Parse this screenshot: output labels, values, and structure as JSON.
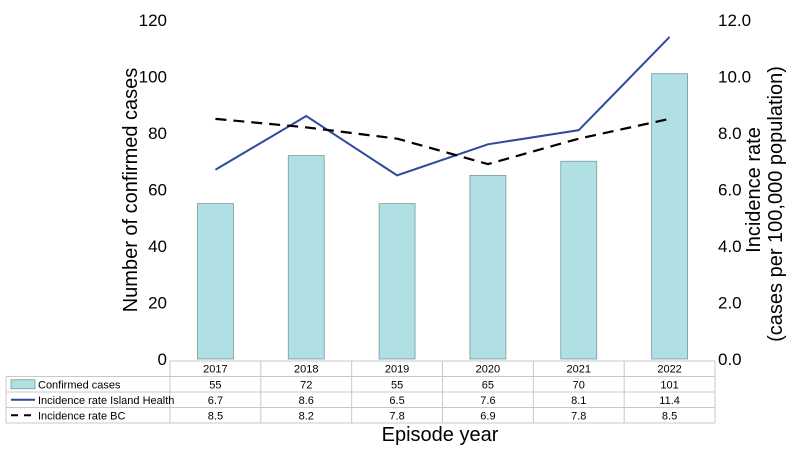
{
  "chart_data": {
    "type": "bar",
    "categories": [
      "2017",
      "2018",
      "2019",
      "2020",
      "2021",
      "2022"
    ],
    "series": [
      {
        "name": "Confirmed cases",
        "type": "bar",
        "axis": "left",
        "values": [
          55,
          72,
          55,
          65,
          70,
          101
        ],
        "color": "#b0e0e3"
      },
      {
        "name": "Incidence rate Island Health",
        "type": "line",
        "axis": "right",
        "values": [
          6.7,
          8.6,
          6.5,
          7.6,
          8.1,
          11.4
        ],
        "color": "#2e4a9e",
        "dash": "solid"
      },
      {
        "name": "Incidence rate BC",
        "type": "line",
        "axis": "right",
        "values": [
          8.5,
          8.2,
          7.8,
          6.9,
          7.8,
          8.5
        ],
        "color": "#000000",
        "dash": "dashed"
      }
    ],
    "ylabel": "Number of confirmed cases",
    "ylabel_right_line1": "Incidence rate",
    "ylabel_right_line2": "(cases per 100,000 population)",
    "xlabel": "Episode year",
    "ylim": [
      0,
      120
    ],
    "yticks": [
      "0",
      "20",
      "40",
      "60",
      "80",
      "100",
      "120"
    ],
    "ylim_right": [
      0,
      12
    ],
    "yticks_right": [
      "0.0",
      "2.0",
      "4.0",
      "6.0",
      "8.0",
      "10.0",
      "12.0"
    ],
    "table": {
      "rows": [
        [
          "55",
          "72",
          "55",
          "65",
          "70",
          "101"
        ],
        [
          "6.7",
          "8.6",
          "6.5",
          "7.6",
          "8.1",
          "11.4"
        ],
        [
          "8.5",
          "8.2",
          "7.8",
          "6.9",
          "7.8",
          "8.5"
        ]
      ]
    },
    "grid": false,
    "legend": "data-table"
  }
}
